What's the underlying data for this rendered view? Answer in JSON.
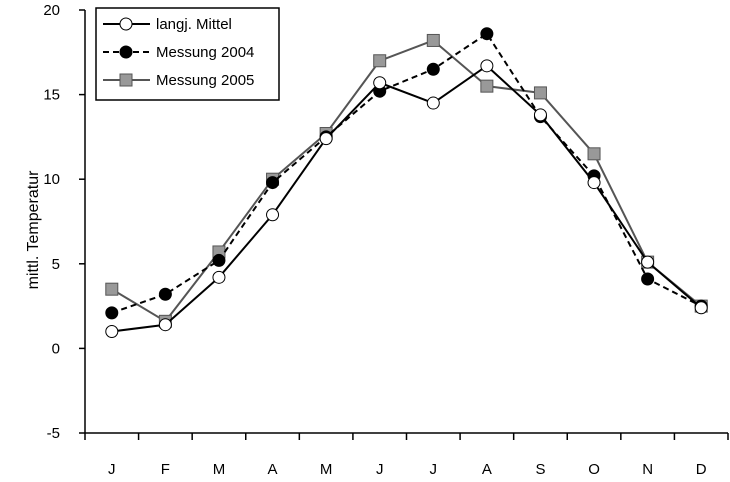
{
  "chart_data": {
    "type": "line",
    "categories": [
      "J",
      "F",
      "M",
      "A",
      "M",
      "J",
      "J",
      "A",
      "S",
      "O",
      "N",
      "D"
    ],
    "ylabel": "mittl. Temperatur",
    "xlabel": "",
    "ylim": [
      -5,
      20
    ],
    "yticks": [
      "-5",
      "0",
      "5",
      "10",
      "15",
      "20"
    ],
    "grid": false,
    "legend_position": "top-left",
    "series": [
      {
        "name": "langj. Mittel",
        "values": [
          1.0,
          1.4,
          4.2,
          7.9,
          12.4,
          15.7,
          14.5,
          16.7,
          13.8,
          9.8,
          5.1,
          2.4
        ],
        "line_color": "#000000",
        "line_style": "solid",
        "marker": "circle",
        "marker_fill": "#ffffff"
      },
      {
        "name": "Messung 2004",
        "values": [
          2.1,
          3.2,
          5.2,
          9.8,
          12.5,
          15.2,
          16.5,
          18.6,
          13.7,
          10.2,
          4.1,
          2.5
        ],
        "line_color": "#000000",
        "line_style": "dashed",
        "marker": "circle",
        "marker_fill": "#000000"
      },
      {
        "name": "Messung 2005",
        "values": [
          3.5,
          1.6,
          5.7,
          10.0,
          12.7,
          17.0,
          18.2,
          15.5,
          15.1,
          11.5,
          5.1,
          2.5
        ],
        "line_color": "#555555",
        "line_style": "solid",
        "marker": "square",
        "marker_fill": "#999999"
      }
    ]
  }
}
